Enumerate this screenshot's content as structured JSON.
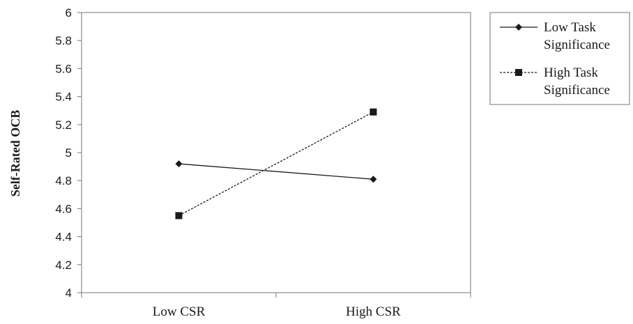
{
  "chart_data": {
    "type": "line",
    "title": "",
    "ylabel": "Self-Rated OCB",
    "xlabel": "",
    "categories": [
      "Low CSR",
      "High CSR"
    ],
    "ylim": [
      4,
      6
    ],
    "yticks": [
      "4",
      "4.2",
      "4.4",
      "4.6",
      "4.8",
      "5",
      "5.2",
      "5.4",
      "5.6",
      "5.8",
      "6"
    ],
    "grid": false,
    "legend_position": "right",
    "series": [
      {
        "name_lines": [
          "Low Task",
          "Significance"
        ],
        "values": [
          4.92,
          4.81
        ],
        "line_style": "solid",
        "marker": "diamond",
        "color": "#1a1a1a"
      },
      {
        "name_lines": [
          "High Task",
          "Significance"
        ],
        "values": [
          4.55,
          5.29
        ],
        "line_style": "dashed",
        "marker": "square",
        "color": "#1a1a1a"
      }
    ]
  }
}
